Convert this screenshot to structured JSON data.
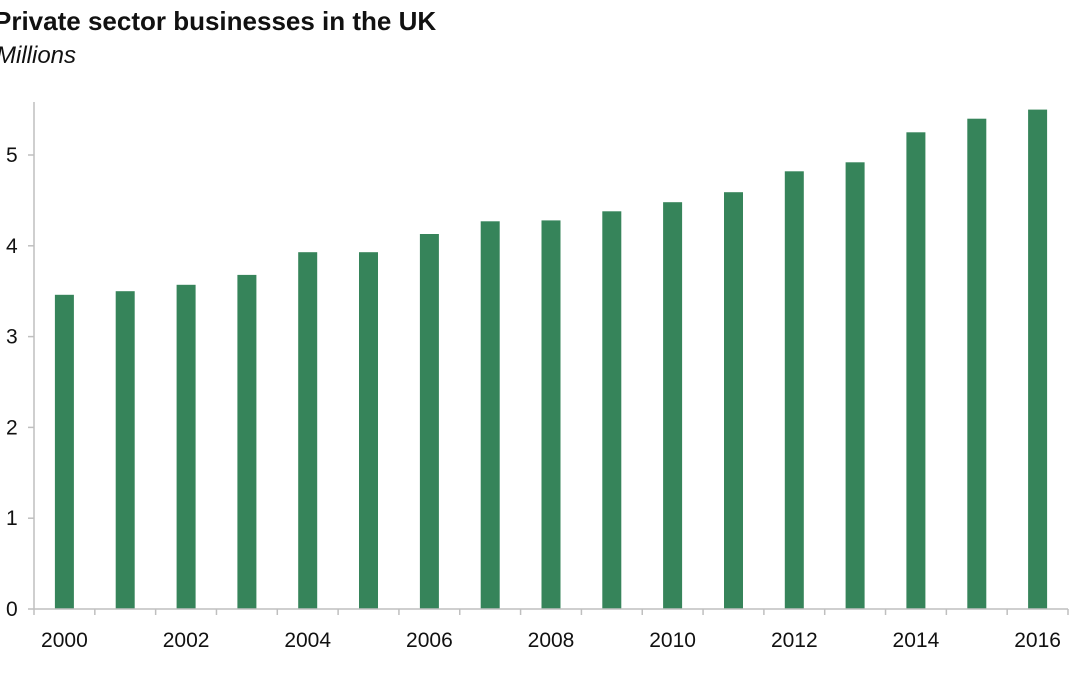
{
  "chart_data": {
    "type": "bar",
    "title": "Private sector businesses in the UK",
    "subtitle": "Millions",
    "xlabel": "",
    "ylabel": "",
    "categories": [
      "2000",
      "2001",
      "2002",
      "2003",
      "2004",
      "2005",
      "2006",
      "2007",
      "2008",
      "2009",
      "2010",
      "2011",
      "2012",
      "2013",
      "2014",
      "2015",
      "2016"
    ],
    "x_tick_labels": [
      "2000",
      "2002",
      "2004",
      "2006",
      "2008",
      "2010",
      "2012",
      "2014",
      "2016"
    ],
    "values": [
      3.46,
      3.5,
      3.57,
      3.68,
      3.93,
      3.93,
      4.13,
      4.27,
      4.28,
      4.38,
      4.48,
      4.59,
      4.82,
      4.92,
      5.25,
      5.4,
      5.5
    ],
    "ylim": [
      0,
      5.5
    ],
    "y_ticks": [
      0,
      1,
      2,
      3,
      4,
      5
    ],
    "grid": false,
    "legend": "none",
    "bar_color": "#36845A",
    "axis_color": "#bfbfbf"
  }
}
